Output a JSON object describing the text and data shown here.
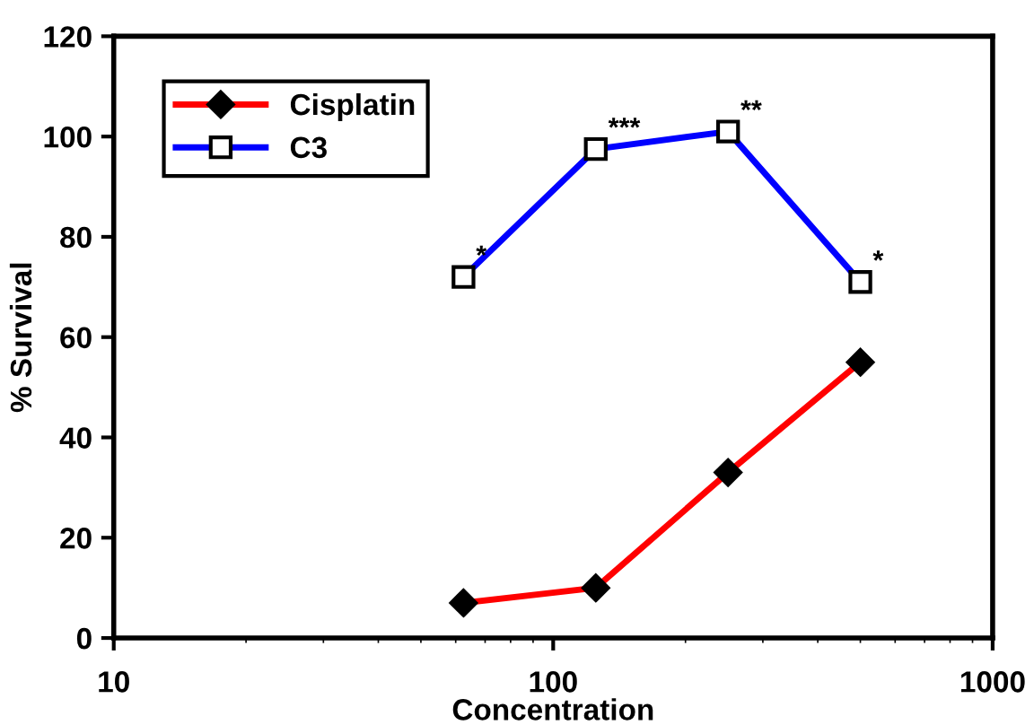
{
  "chart_data": {
    "type": "line",
    "xlabel": "Concentration",
    "ylabel": "% Survival",
    "log": "x",
    "xlim": [
      10,
      1000
    ],
    "xticks": [
      10,
      100,
      1000
    ],
    "ylim": [
      0,
      120
    ],
    "yticks": [
      0,
      20,
      40,
      60,
      80,
      100,
      120
    ],
    "grid": false,
    "legend": "top left",
    "series": [
      {
        "name": "Cisplatin",
        "color": "#ff0000",
        "marker": "diamond",
        "x": [
          62.5,
          125,
          250,
          500
        ],
        "values": [
          7,
          10,
          33,
          55
        ]
      },
      {
        "name": "C3",
        "color": "#0000ff",
        "marker": "square",
        "x": [
          62.5,
          125,
          250,
          500
        ],
        "values": [
          72,
          97.5,
          101,
          71
        ]
      }
    ],
    "annotations": [
      {
        "text": "*",
        "x": 62.5,
        "y": 72
      },
      {
        "text": "***",
        "x": 125,
        "y": 97.5
      },
      {
        "text": "**",
        "x": 250,
        "y": 101
      },
      {
        "text": "*",
        "x": 500,
        "y": 71
      }
    ]
  }
}
